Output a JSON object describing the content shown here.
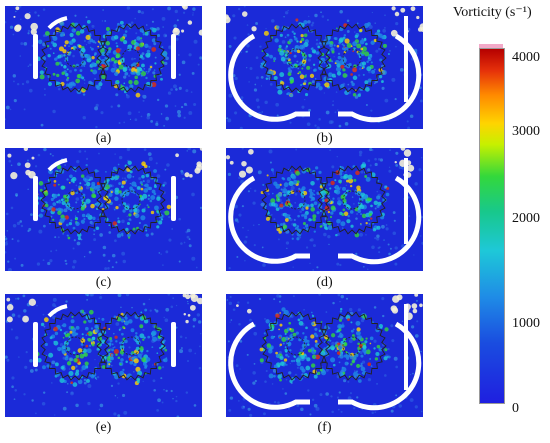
{
  "panels": [
    {
      "label": "(a)",
      "casing": "open"
    },
    {
      "label": "(b)",
      "casing": "enclosed"
    },
    {
      "label": "(c)",
      "casing": "open"
    },
    {
      "label": "(d)",
      "casing": "enclosed"
    },
    {
      "label": "(e)",
      "casing": "open"
    },
    {
      "label": "(f)",
      "casing": "enclosed"
    }
  ],
  "colorbar": {
    "title": "Vorticity (s⁻¹)",
    "ticks": [
      "4000",
      "3000",
      "2000",
      "1000",
      "0"
    ],
    "colors": [
      "#b50000",
      "#ff8a00",
      "#ffd400",
      "#33d83c",
      "#1ec8d8",
      "#1f8ce6",
      "#1f1fe0"
    ]
  },
  "colors": {
    "background_flow": "#1b2ad8",
    "casing": "#ffffff",
    "gear_outline": "#222222"
  }
}
